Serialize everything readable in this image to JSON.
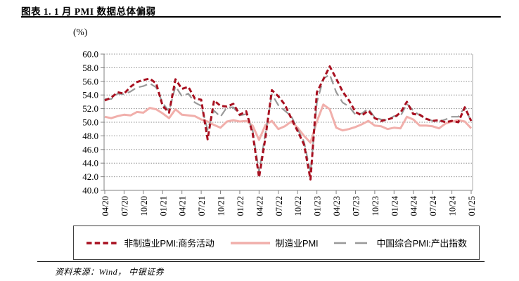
{
  "header": {
    "title": "图表 1. 1 月 PMI 数据总体偏弱"
  },
  "footer": {
    "source": "资料来源：Wind， 中银证券"
  },
  "chart_data": {
    "type": "line",
    "unit_label": "(%)",
    "grid": "horizontal-dotted",
    "legend_position": "bottom-box",
    "ylim": [
      40.0,
      60.0
    ],
    "ytick_step": 2.0,
    "ytick_labels": [
      "40.0",
      "42.0",
      "44.0",
      "46.0",
      "48.0",
      "50.0",
      "52.0",
      "54.0",
      "56.0",
      "58.0",
      "60.0"
    ],
    "x_frequency": "monthly",
    "xtick_interval_months": 3,
    "xtick_labels": [
      "04/20",
      "07/20",
      "10/20",
      "01/21",
      "04/21",
      "07/21",
      "10/21",
      "01/22",
      "04/22",
      "07/22",
      "10/22",
      "01/23",
      "04/23",
      "07/23",
      "10/23",
      "01/24",
      "04/24",
      "07/24",
      "10/24",
      "01/25"
    ],
    "series": [
      {
        "key": "non-mfg-pmi",
        "name": "非制造业PMI:商务活动",
        "color": "#A81020",
        "style": "short-dash",
        "values": [
          53.2,
          53.6,
          54.4,
          54.2,
          55.2,
          55.9,
          56.2,
          56.4,
          55.7,
          52.4,
          51.4,
          56.3,
          54.9,
          55.2,
          53.5,
          53.3,
          47.5,
          53.2,
          52.4,
          52.3,
          52.7,
          51.1,
          51.6,
          48.4,
          41.9,
          47.8,
          54.7,
          53.8,
          52.6,
          50.6,
          48.7,
          46.7,
          41.6,
          54.4,
          56.3,
          58.2,
          56.4,
          54.5,
          53.2,
          51.5,
          51.0,
          51.7,
          50.6,
          50.2,
          50.4,
          50.7,
          51.4,
          53.0,
          51.2,
          51.1,
          50.5,
          50.2,
          50.3,
          50.0,
          50.2,
          50.0,
          52.2,
          50.2
        ]
      },
      {
        "key": "mfg-pmi",
        "name": "制造业PMI",
        "color": "#F1AFAB",
        "style": "solid",
        "values": [
          50.8,
          50.6,
          50.9,
          51.1,
          51.0,
          51.5,
          51.4,
          52.1,
          51.9,
          51.3,
          50.6,
          51.9,
          51.1,
          51.0,
          50.9,
          50.4,
          50.1,
          49.6,
          49.2,
          50.1,
          50.3,
          50.1,
          50.2,
          49.5,
          47.4,
          49.6,
          50.2,
          49.0,
          49.4,
          50.1,
          49.2,
          48.0,
          47.0,
          50.1,
          52.6,
          51.9,
          49.2,
          48.8,
          49.0,
          49.3,
          49.7,
          50.2,
          49.5,
          49.4,
          49.0,
          49.2,
          49.1,
          50.8,
          50.4,
          49.5,
          49.5,
          49.4,
          49.1,
          49.8,
          50.1,
          50.3,
          50.1,
          49.1
        ]
      },
      {
        "key": "composite-pmi",
        "name": "中国综合PMI:产出指数",
        "color": "#999999",
        "style": "long-dash",
        "values": [
          53.4,
          53.4,
          54.2,
          54.1,
          54.5,
          55.1,
          55.3,
          55.7,
          55.1,
          52.8,
          51.6,
          55.3,
          53.8,
          54.2,
          52.9,
          52.4,
          48.9,
          51.7,
          50.8,
          52.2,
          52.2,
          51.0,
          51.2,
          48.8,
          42.7,
          48.4,
          54.1,
          52.5,
          51.7,
          50.9,
          49.0,
          47.1,
          42.6,
          52.9,
          56.4,
          57.0,
          54.4,
          52.9,
          52.3,
          51.1,
          51.3,
          52.0,
          50.7,
          50.4,
          50.3,
          50.9,
          50.9,
          52.7,
          51.7,
          51.0,
          50.5,
          50.2,
          50.1,
          50.4,
          50.8,
          50.8,
          52.2,
          50.1
        ]
      }
    ]
  }
}
